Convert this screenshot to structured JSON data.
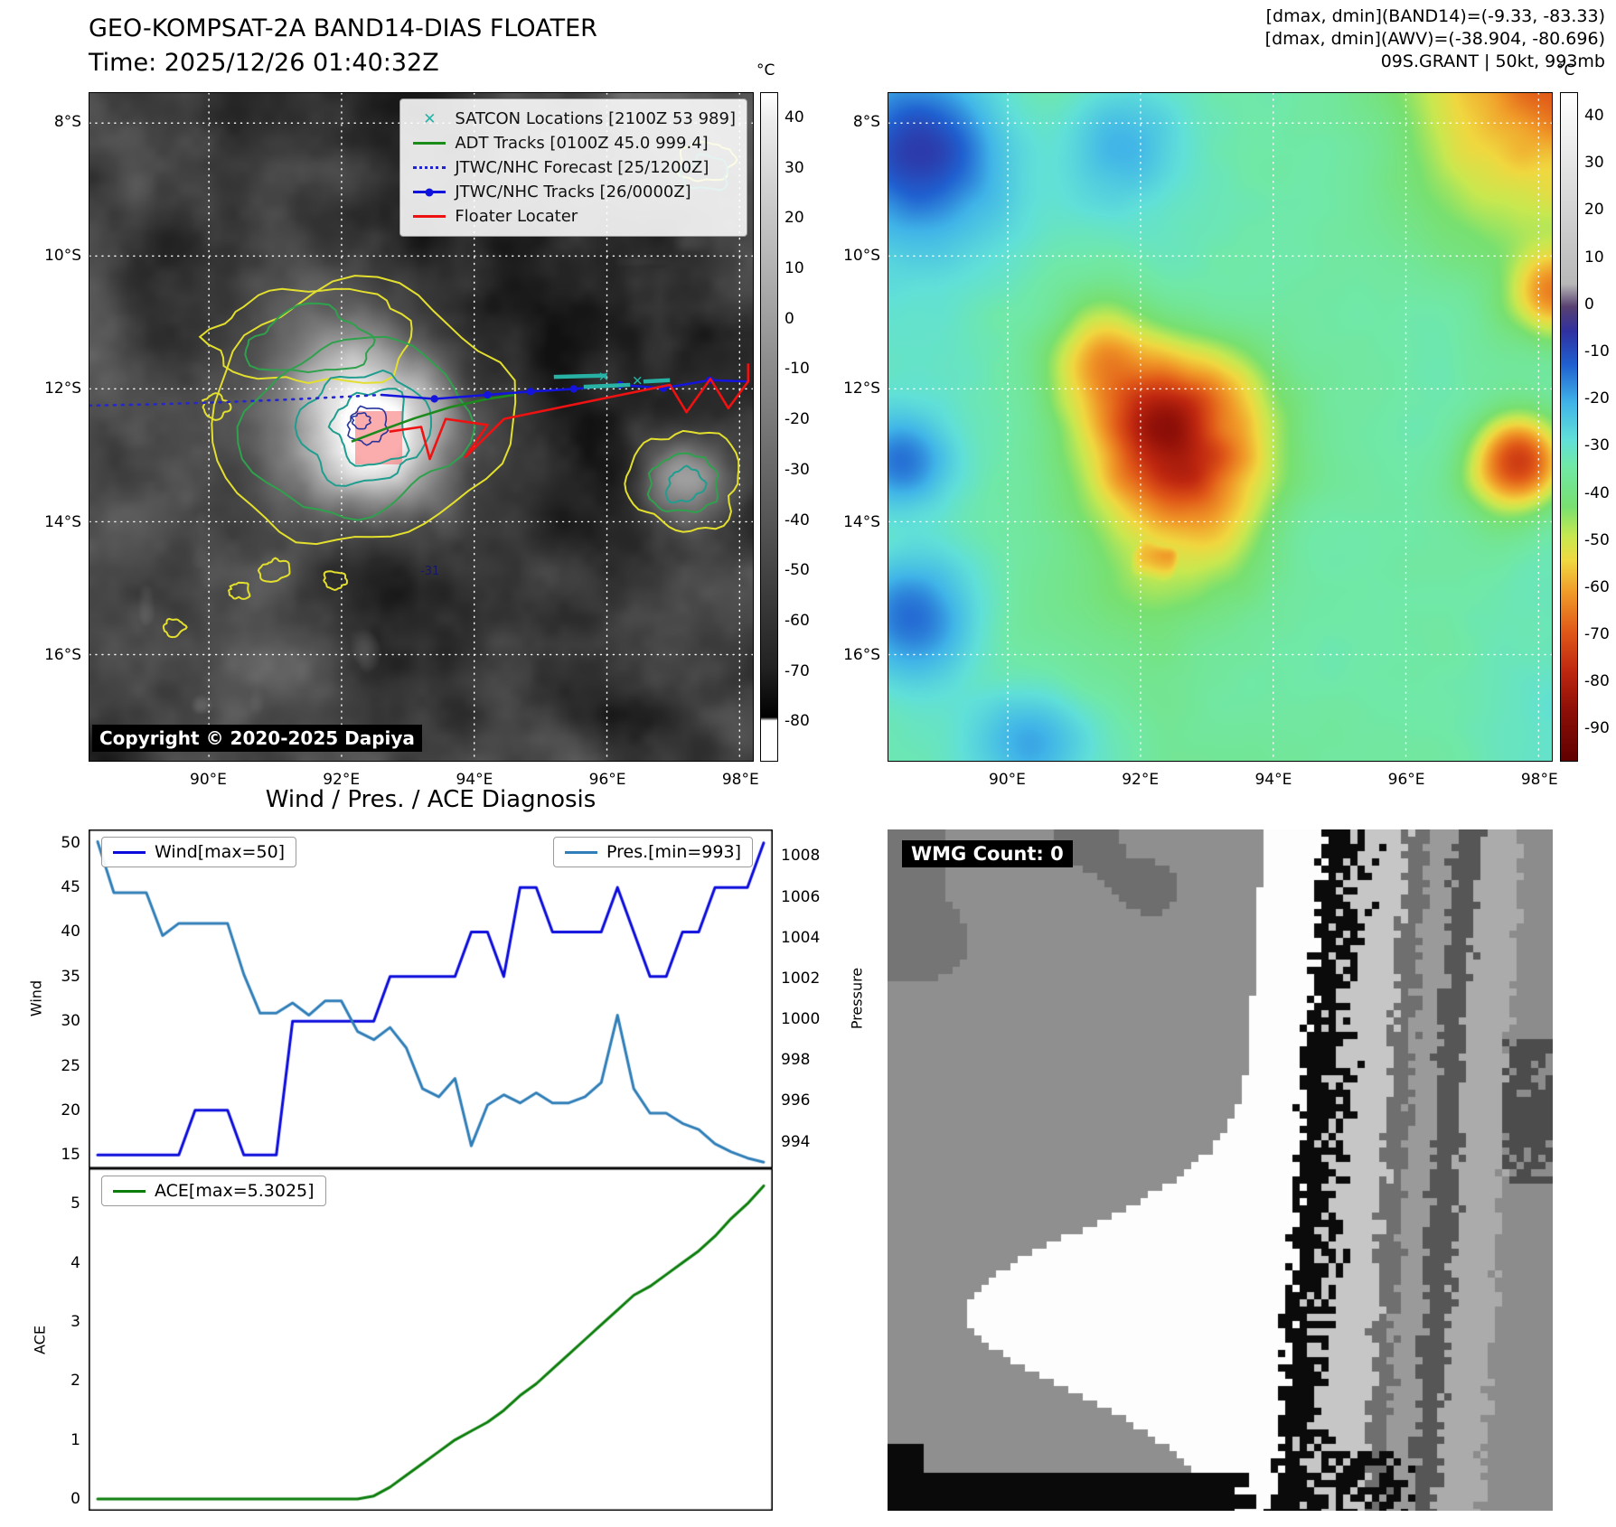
{
  "band14_panel": {
    "title": "GEO-KOMPSAT-2A BAND14-DIAS FLOATER",
    "subtitle": "Time: 2025/12/26 01:40:32Z",
    "copyright": "Copyright © 2020-2025 Dapiya",
    "contour_label": "-31",
    "colorbar_unit": "°C",
    "colorbar_ticks": [
      "40",
      "30",
      "20",
      "10",
      "0",
      "-10",
      "-20",
      "-30",
      "-40",
      "-50",
      "-60",
      "-70",
      "-80"
    ],
    "x_ticks": [
      "90°E",
      "92°E",
      "94°E",
      "96°E",
      "98°E"
    ],
    "y_ticks": [
      "8°S",
      "10°S",
      "12°S",
      "14°S",
      "16°S"
    ],
    "legend": [
      {
        "label": "SATCON Locations [2100Z 53 989]",
        "marker": "x",
        "color": "#26b3a7"
      },
      {
        "label": "ADT Tracks [0100Z 45.0 999.4]",
        "marker": "line",
        "color": "#1a8c1a"
      },
      {
        "label": "JTWC/NHC Forecast [25/1200Z]",
        "marker": "dotted",
        "color": "#2323cc"
      },
      {
        "label": "JTWC/NHC Tracks [26/0000Z]",
        "marker": "line-dot",
        "color": "#1212dd"
      },
      {
        "label": "Floater Locater",
        "marker": "line",
        "color": "#ee1111"
      }
    ]
  },
  "awv_panel": {
    "header_lines": [
      "[dmax, dmin](BAND14)=(-9.33, -83.33)",
      "[dmax, dmin](AWV)=(-38.904, -80.696)",
      "09S.GRANT | 50kt, 993mb"
    ],
    "colorbar_unit": "°C",
    "colorbar_ticks": [
      "40",
      "30",
      "20",
      "10",
      "0",
      "-10",
      "-20",
      "-30",
      "-40",
      "-50",
      "-60",
      "-70",
      "-80",
      "-90"
    ],
    "x_ticks": [
      "90°E",
      "92°E",
      "94°E",
      "96°E",
      "98°E"
    ],
    "y_ticks": [
      "8°S",
      "10°S",
      "12°S",
      "14°S",
      "16°S"
    ]
  },
  "wmg_panel": {
    "label": "WMG Count: 0"
  },
  "diagnosis": {
    "title": "Wind / Pres. / ACE Diagnosis",
    "wind_legend": "Wind[max=50]",
    "pres_legend": "Pres.[min=993]",
    "ace_legend": "ACE[max=5.3025]",
    "wind_axis_label": "Wind",
    "pressure_axis_label": "Pressure",
    "ace_axis_label": "ACE"
  },
  "chart_data": [
    {
      "type": "line",
      "title": "Wind / Pres. / ACE Diagnosis",
      "ylabel": "Wind",
      "y2label": "Pressure",
      "ylim": [
        13.5,
        51.5
      ],
      "y2lim": [
        992.7,
        1009.3
      ],
      "yticks": [
        50,
        45,
        40,
        35,
        30,
        25,
        20,
        15
      ],
      "y2ticks": [
        1008,
        1006,
        1004,
        1002,
        1000,
        998,
        996,
        994
      ],
      "grid": false,
      "legend_position": "top",
      "series": [
        {
          "name": "Wind[max=50]",
          "axis": "left",
          "color": "#0a0adc",
          "values": [
            15,
            15,
            15,
            15,
            15,
            15,
            20,
            20,
            20,
            15,
            15,
            15,
            30,
            30,
            30,
            30,
            30,
            30,
            35,
            35,
            35,
            35,
            35,
            40,
            40,
            35,
            45,
            45,
            40,
            40,
            40,
            40,
            45,
            40,
            35,
            35,
            40,
            40,
            45,
            45,
            45,
            50
          ]
        },
        {
          "name": "Pres.[min=993]",
          "axis": "right",
          "color": "#2f7eb8",
          "values": [
            1008.7,
            1006.2,
            1006.2,
            1006.2,
            1004.1,
            1004.7,
            1004.7,
            1004.7,
            1004.7,
            1002.2,
            1000.3,
            1000.3,
            1000.8,
            1000.2,
            1000.9,
            1000.9,
            999.4,
            999.0,
            999.6,
            998.6,
            996.6,
            996.2,
            997.1,
            993.8,
            995.8,
            996.3,
            995.9,
            996.4,
            995.9,
            995.9,
            996.2,
            996.9,
            1000.2,
            996.6,
            995.4,
            995.4,
            994.9,
            994.6,
            993.9,
            993.5,
            993.2,
            993.0
          ]
        }
      ]
    },
    {
      "type": "line",
      "ylabel": "ACE",
      "ylim": [
        -0.2,
        5.6
      ],
      "yticks": [
        5,
        4,
        3,
        2,
        1,
        0
      ],
      "grid": false,
      "series": [
        {
          "name": "ACE[max=5.3025]",
          "axis": "left",
          "color": "#0a7d0a",
          "values": [
            0,
            0,
            0,
            0,
            0,
            0,
            0,
            0,
            0,
            0,
            0,
            0,
            0,
            0,
            0,
            0,
            0,
            0.05,
            0.2,
            0.4,
            0.6,
            0.8,
            1.0,
            1.15,
            1.3,
            1.5,
            1.75,
            1.95,
            2.2,
            2.45,
            2.7,
            2.95,
            3.2,
            3.45,
            3.6,
            3.8,
            4.0,
            4.2,
            4.45,
            4.75,
            5.0,
            5.3025
          ]
        }
      ]
    }
  ]
}
